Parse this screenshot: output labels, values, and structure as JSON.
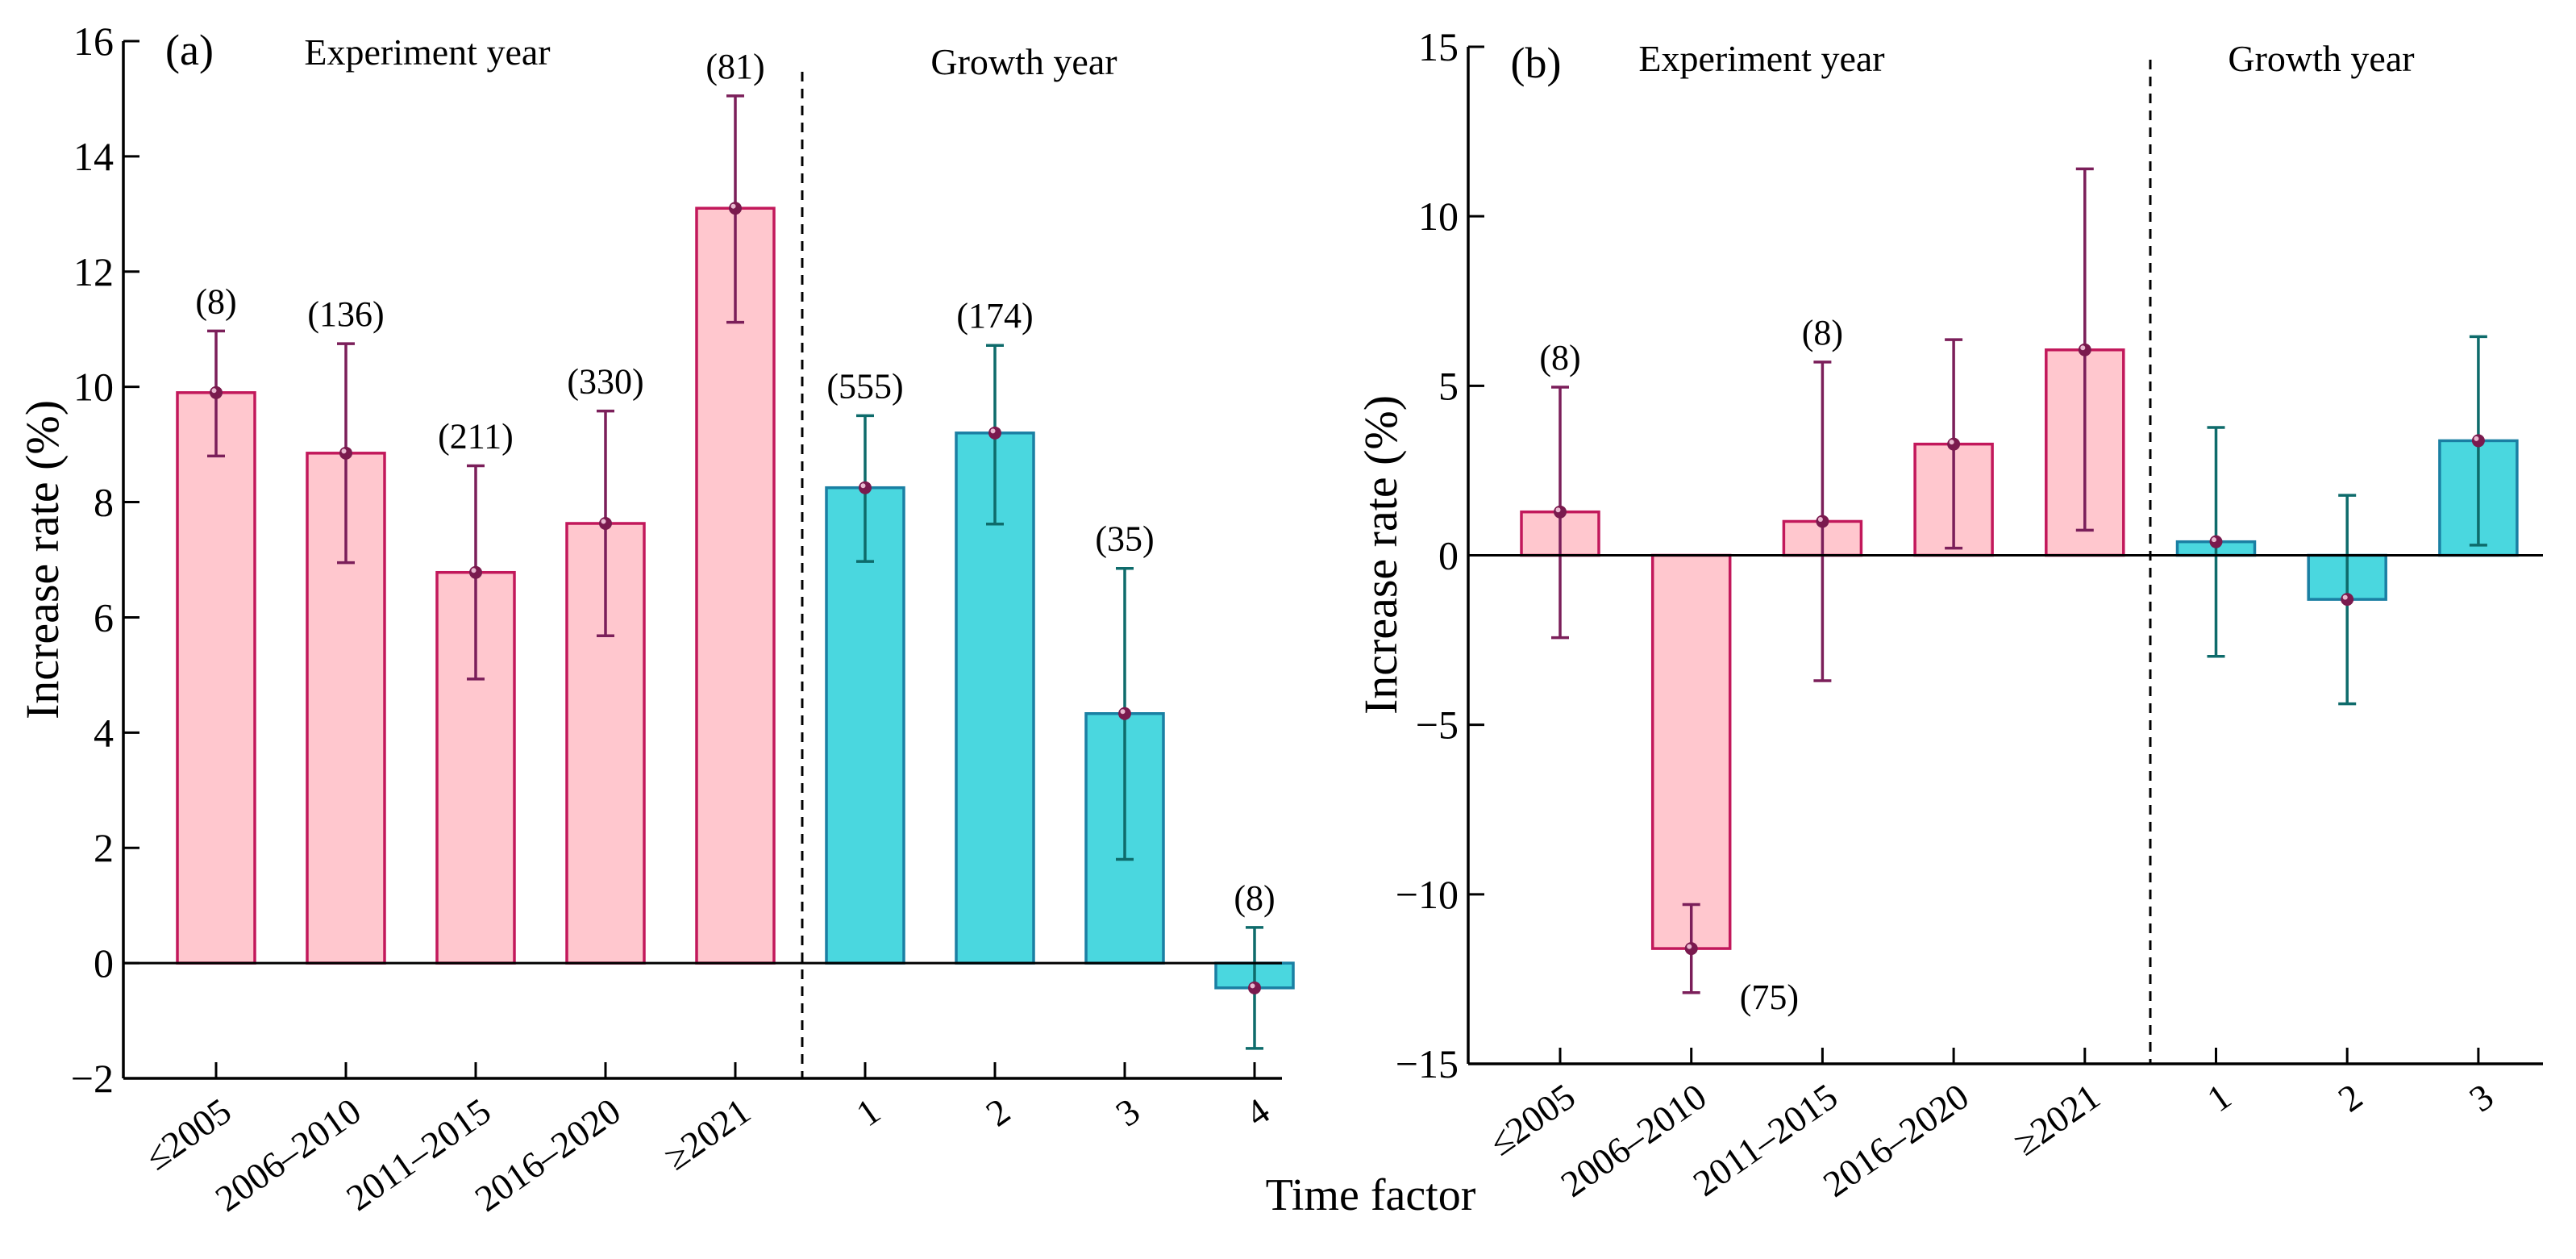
{
  "figure": {
    "xlabel": "Time factor"
  },
  "colors": {
    "exp_fill": "#FFC7CE",
    "exp_edge": "#C2185B",
    "exp_err": "#7B1F5A",
    "grow_fill": "#4AD7DF",
    "grow_edge": "#1A7FA3",
    "grow_err": "#0E6B6B",
    "marker": "#7A1A4E"
  },
  "chart_data": [
    {
      "type": "bar",
      "panel_label": "(a)",
      "group_labels": [
        "Experiment year",
        "Growth year"
      ],
      "ylabel": "Increase rate (%)",
      "ylim": [
        -2,
        16
      ],
      "yticks": [
        -2,
        0,
        2,
        4,
        6,
        8,
        10,
        12,
        14,
        16
      ],
      "ytick_labels": [
        "−2",
        "0",
        "2",
        "4",
        "6",
        "8",
        "10",
        "12",
        "14",
        "16"
      ],
      "categories": [
        "≤2005",
        "2006–2010",
        "2011–2015",
        "2016–2020",
        "≥2021",
        "1",
        "2",
        "3",
        "4"
      ],
      "groups": [
        "exp",
        "exp",
        "exp",
        "exp",
        "exp",
        "grow",
        "grow",
        "grow",
        "grow"
      ],
      "values": [
        9.9,
        8.85,
        6.78,
        7.63,
        13.1,
        8.25,
        9.2,
        4.33,
        -0.43
      ],
      "ci_low": [
        8.8,
        6.95,
        4.93,
        5.68,
        11.12,
        6.97,
        7.62,
        1.8,
        -1.48
      ],
      "ci_high": [
        10.97,
        10.75,
        8.63,
        9.58,
        15.05,
        9.5,
        10.72,
        6.85,
        0.62
      ],
      "counts": [
        "(8)",
        "(136)",
        "(211)",
        "(330)",
        "(81)",
        "(555)",
        "(174)",
        "(35)",
        "(8)"
      ]
    },
    {
      "type": "bar",
      "panel_label": "(b)",
      "group_labels": [
        "Experiment year",
        "Growth year"
      ],
      "ylabel": "Increase rate (%)",
      "ylim": [
        -15,
        15
      ],
      "yticks": [
        -15,
        -10,
        -5,
        0,
        5,
        10,
        15
      ],
      "ytick_labels": [
        "−15",
        "−10",
        "−5",
        "0",
        "5",
        "10",
        "15"
      ],
      "categories": [
        "≤2005",
        "2006–2010",
        "2011–2015",
        "2016–2020",
        "≥2021",
        "1",
        "2",
        "3"
      ],
      "groups": [
        "exp",
        "exp",
        "exp",
        "exp",
        "exp",
        "grow",
        "grow",
        "grow"
      ],
      "values": [
        1.28,
        -11.6,
        1.0,
        3.28,
        6.06,
        0.4,
        -1.3,
        3.38
      ],
      "ci_low": [
        -2.43,
        -12.9,
        -3.7,
        0.21,
        0.74,
        -2.98,
        -4.38,
        0.3
      ],
      "ci_high": [
        4.96,
        -10.3,
        5.7,
        6.36,
        11.4,
        3.77,
        1.77,
        6.45
      ],
      "counts": [
        "(8)",
        "(75)",
        "(8)",
        "",
        "",
        "",
        "",
        ""
      ]
    }
  ]
}
